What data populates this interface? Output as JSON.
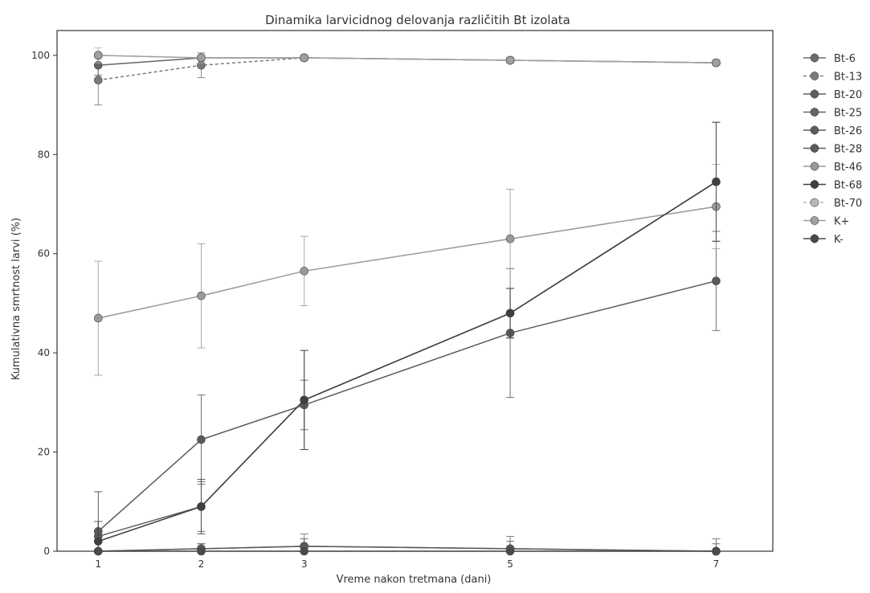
{
  "chart_data": {
    "type": "line",
    "title": "Dinamika larvicidnog delovanja različitih Bt izolata",
    "xlabel": "Vreme nakon tretmana (dani)",
    "ylabel": "Kumulativna smrtnost larvi (%)",
    "x": [
      1,
      2,
      3,
      5,
      7
    ],
    "xticks": [
      1,
      2,
      3,
      5,
      7
    ],
    "yticks": [
      0,
      20,
      40,
      60,
      80,
      100
    ],
    "xlim": [
      0.6,
      7.55
    ],
    "ylim": [
      0,
      105
    ],
    "grid": false,
    "legend_position": "outside-right",
    "series": [
      {
        "name": "Bt-6",
        "values": [
          0,
          0.5,
          1,
          0.5,
          0
        ],
        "errors": [
          0,
          1,
          2.5,
          2.5,
          2.5
        ],
        "color": "#6c6c6c",
        "dashed": false
      },
      {
        "name": "Bt-13",
        "values": [
          95,
          98,
          99.5,
          99,
          98.5
        ],
        "errors": [
          5,
          2.5,
          0.5,
          0.5,
          0.5
        ],
        "color": "#7a7a7a",
        "dashed": true
      },
      {
        "name": "Bt-20",
        "values": [
          3,
          9,
          30.5,
          48,
          74.5
        ],
        "errors": [
          3,
          5,
          10,
          5,
          12
        ],
        "color": "#5e5e5e",
        "dashed": false
      },
      {
        "name": "Bt-25",
        "values": [
          98,
          99.5,
          99.5,
          99,
          98.5
        ],
        "errors": [
          2,
          1,
          0.5,
          0.5,
          0.5
        ],
        "color": "#646464",
        "dashed": false
      },
      {
        "name": "Bt-26",
        "values": [
          0,
          0.5,
          1,
          0.5,
          0
        ],
        "errors": [
          0,
          1,
          1.5,
          1.5,
          1.5
        ],
        "color": "#5c5c5c",
        "dashed": false
      },
      {
        "name": "Bt-28",
        "values": [
          4,
          22.5,
          29.5,
          44,
          54.5
        ],
        "errors": [
          2,
          9,
          5,
          13,
          10
        ],
        "color": "#5a5a5a",
        "dashed": false
      },
      {
        "name": "Bt-46",
        "values": [
          47,
          51.5,
          56.5,
          63,
          69.5
        ],
        "errors": [
          11.5,
          10.5,
          7,
          10,
          8.5
        ],
        "color": "#9a9a9a",
        "dashed": false
      },
      {
        "name": "Bt-68",
        "values": [
          2,
          9,
          30.5,
          48,
          74.5
        ],
        "errors": [
          10,
          5.5,
          10,
          5,
          12
        ],
        "color": "#3f3f3f",
        "dashed": false
      },
      {
        "name": "Bt-70",
        "values": [
          100,
          99.5,
          99.5,
          99,
          98.5
        ],
        "errors": [
          1.5,
          1,
          0.5,
          0.5,
          0.5
        ],
        "color": "#b8b8b8",
        "dashed": true
      },
      {
        "name": "K+",
        "values": [
          100,
          99.5,
          99.5,
          99,
          98.5
        ],
        "errors": [
          0.5,
          0.5,
          0.5,
          0.5,
          0.5
        ],
        "color": "#a0a0a0",
        "dashed": false
      },
      {
        "name": "K-",
        "values": [
          0,
          0,
          0,
          0,
          0
        ],
        "errors": [
          0,
          0,
          0,
          0,
          0
        ],
        "color": "#4a4a4a",
        "dashed": false
      }
    ]
  }
}
